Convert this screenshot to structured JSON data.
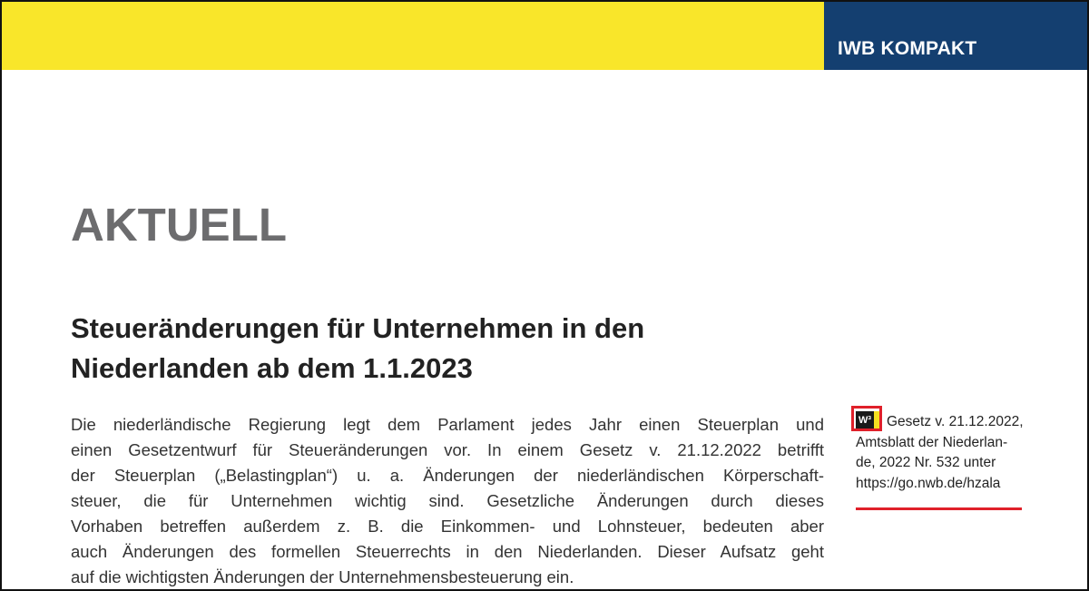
{
  "header": {
    "badge": "IWB KOMPAKT",
    "colors": {
      "band": "#f9e62a",
      "badge_bg": "#143f70",
      "highlight": "#e0202a"
    }
  },
  "section_label": "AKTUELL",
  "article": {
    "title_lines": [
      "Steueränderungen für Unternehmen in den",
      "Niederlanden ab dem 1.1.2023"
    ],
    "body_lines": [
      "Die niederländische Regierung legt dem Parlament jedes Jahr einen Steuerplan und",
      "einen Gesetzentwurf für Steueränderungen vor. In einem Gesetz v. 21.12.2022 betrifft",
      "der Steuerplan („Belastingplan“) u. a. Änderungen der niederländischen Körperschaft-",
      "steuer, die für Unternehmen wichtig sind. Gesetzliche Änderungen durch dieses",
      "Vorhaben betreffen außerdem z. B. die Einkommen- und Lohnsteuer, bedeuten aber",
      "auch Änderungen des formellen Steuerrechts in den Niederlanden. Dieser Aufsatz geht",
      "auf die wichtigsten Änderungen der Unternehmensbesteuerung ein."
    ]
  },
  "sidenote": {
    "icon_label": "W³",
    "icon": "nwb-w3-link-icon",
    "lines": [
      "Gesetz v. 21.12.2022,",
      "Amtsblatt der Niederlan-",
      "de, 2022 Nr. 532 unter"
    ],
    "link": "https://go.nwb.de/hzala"
  }
}
